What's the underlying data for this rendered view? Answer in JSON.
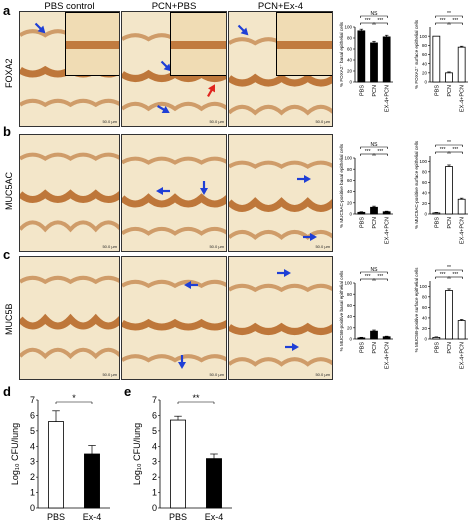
{
  "figure": {
    "panel_labels": [
      "a",
      "b",
      "c",
      "d",
      "e"
    ],
    "columns": [
      "PBS control",
      "PCN+PBS",
      "PCN+Ex-4"
    ],
    "rows": [
      "FOXA2",
      "MUC5AC",
      "MUC5B"
    ],
    "scale_bar": "50.0 µm",
    "colors": {
      "tissue_brown": "#b86a2a",
      "background": "#f3e6c9",
      "arrow_blue": "#1f3fd6",
      "arrow_red": "#e0251e"
    }
  },
  "chart_data": [
    {
      "id": "a-basal",
      "type": "bar",
      "categories": [
        "PBS",
        "PCN",
        "EX-4+PCN"
      ],
      "values": [
        93,
        71,
        82
      ],
      "errors": [
        3,
        3,
        3
      ],
      "fills": [
        "black",
        "black",
        "black"
      ],
      "ylabel": "% FOXA2⁺ basal epithelial cells",
      "ylim": [
        0,
        100
      ],
      "yticks": [
        0,
        20,
        40,
        60,
        80,
        100
      ],
      "sig": [
        {
          "from": 0,
          "to": 2,
          "text": "NS"
        },
        {
          "from": 0,
          "to": 1,
          "text": "***"
        },
        {
          "from": 1,
          "to": 2,
          "text": "***"
        }
      ]
    },
    {
      "id": "a-surface",
      "type": "bar",
      "categories": [
        "PBS",
        "PCN",
        "EX-4+PCN"
      ],
      "values": [
        100,
        20,
        76
      ],
      "errors": [
        0,
        2,
        2
      ],
      "fills": [
        "white",
        "white",
        "white"
      ],
      "ylabel": "% FOXA2⁺ surface epithelial cells",
      "ylim": [
        0,
        120
      ],
      "yticks": [
        0,
        20,
        40,
        60,
        80,
        100
      ],
      "sig": [
        {
          "from": 0,
          "to": 2,
          "text": "**"
        },
        {
          "from": 0,
          "to": 1,
          "text": "***"
        },
        {
          "from": 1,
          "to": 2,
          "text": "***"
        }
      ]
    },
    {
      "id": "b-basal",
      "type": "bar",
      "categories": [
        "PBS",
        "PCN",
        "EX-4+PCN"
      ],
      "values": [
        3,
        12,
        4
      ],
      "errors": [
        1,
        2,
        1
      ],
      "fills": [
        "black",
        "black",
        "black"
      ],
      "ylabel": "% MUC5AC-positive basal epithelial cells",
      "ylim": [
        0,
        100
      ],
      "yticks": [
        0,
        20,
        40,
        60,
        80,
        100
      ],
      "sig": [
        {
          "from": 0,
          "to": 2,
          "text": "NS"
        },
        {
          "from": 0,
          "to": 1,
          "text": "***"
        },
        {
          "from": 1,
          "to": 2,
          "text": "***"
        }
      ]
    },
    {
      "id": "b-surface",
      "type": "bar",
      "categories": [
        "PBS",
        "PCN",
        "EX-4+PCN"
      ],
      "values": [
        2,
        90,
        28
      ],
      "errors": [
        1,
        3,
        2
      ],
      "fills": [
        "white",
        "white",
        "white"
      ],
      "ylabel": "% MUC5AC-positive surface epithelial cells",
      "ylim": [
        0,
        110
      ],
      "yticks": [
        0,
        20,
        40,
        60,
        80,
        100
      ],
      "sig": [
        {
          "from": 0,
          "to": 2,
          "text": "**"
        },
        {
          "from": 0,
          "to": 1,
          "text": "***"
        },
        {
          "from": 1,
          "to": 2,
          "text": "***"
        }
      ]
    },
    {
      "id": "c-basal",
      "type": "bar",
      "categories": [
        "PBS",
        "PCN",
        "EX-4+PCN"
      ],
      "values": [
        2,
        14,
        4
      ],
      "errors": [
        1,
        2,
        1
      ],
      "fills": [
        "black",
        "black",
        "black"
      ],
      "ylabel": "% MUC5B-positive basal epithelial cells",
      "ylim": [
        0,
        100
      ],
      "yticks": [
        0,
        20,
        40,
        60,
        80,
        100
      ],
      "sig": [
        {
          "from": 0,
          "to": 2,
          "text": "NS"
        },
        {
          "from": 0,
          "to": 1,
          "text": "***"
        },
        {
          "from": 1,
          "to": 2,
          "text": "***"
        }
      ]
    },
    {
      "id": "c-surface",
      "type": "bar",
      "categories": [
        "PBS",
        "PCN",
        "EX-4+PCN"
      ],
      "values": [
        3,
        92,
        35
      ],
      "errors": [
        1,
        3,
        2
      ],
      "fills": [
        "white",
        "white",
        "white"
      ],
      "ylabel": "% MUC5B-positive surface epithelial cells",
      "ylim": [
        0,
        110
      ],
      "yticks": [
        0,
        20,
        40,
        60,
        80,
        100
      ],
      "sig": [
        {
          "from": 0,
          "to": 2,
          "text": "**"
        },
        {
          "from": 0,
          "to": 1,
          "text": "***"
        },
        {
          "from": 1,
          "to": 2,
          "text": "***"
        }
      ]
    },
    {
      "id": "d",
      "type": "bar",
      "categories": [
        "PBS",
        "Ex-4"
      ],
      "values": [
        5.6,
        3.5
      ],
      "errors": [
        0.7,
        0.55
      ],
      "fills": [
        "white",
        "black"
      ],
      "ylabel": "Log₁₀ CFU/lung",
      "ylim": [
        0,
        7
      ],
      "yticks": [
        0,
        1,
        2,
        3,
        4,
        5,
        6,
        7
      ],
      "sig": [
        {
          "from": 0,
          "to": 1,
          "text": "*"
        }
      ]
    },
    {
      "id": "e",
      "type": "bar",
      "categories": [
        "PBS",
        "Ex-4"
      ],
      "values": [
        5.7,
        3.2
      ],
      "errors": [
        0.25,
        0.3
      ],
      "fills": [
        "white",
        "black"
      ],
      "ylabel": "Log₁₀ CFU/lung",
      "ylim": [
        0,
        7
      ],
      "yticks": [
        0,
        1,
        2,
        3,
        4,
        5,
        6,
        7
      ],
      "sig": [
        {
          "from": 0,
          "to": 1,
          "text": "**"
        }
      ]
    }
  ]
}
